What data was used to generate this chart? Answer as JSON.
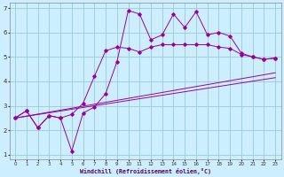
{
  "xlabel": "Windchill (Refroidissement éolien,°C)",
  "background_color": "#cceeff",
  "line_color": "#990099",
  "grid_color": "#99cccc",
  "xlim": [
    -0.5,
    23.5
  ],
  "ylim": [
    0.8,
    7.2
  ],
  "xticks": [
    0,
    1,
    2,
    3,
    4,
    5,
    6,
    7,
    8,
    9,
    10,
    11,
    12,
    13,
    14,
    15,
    16,
    17,
    18,
    19,
    20,
    21,
    22,
    23
  ],
  "yticks": [
    1,
    2,
    3,
    4,
    5,
    6,
    7
  ],
  "series1_x": [
    0,
    1,
    2,
    3,
    4,
    5,
    6,
    7,
    8,
    9,
    10,
    11,
    12,
    13,
    14,
    15,
    16,
    17,
    18,
    19,
    20,
    21,
    22,
    23
  ],
  "series1_y": [
    2.5,
    2.8,
    2.1,
    2.6,
    2.5,
    1.15,
    2.7,
    2.95,
    3.5,
    4.8,
    6.9,
    6.75,
    5.7,
    5.9,
    6.75,
    6.2,
    6.85,
    5.9,
    6.0,
    5.85,
    5.15,
    5.0,
    4.9,
    4.95
  ],
  "series2_x": [
    0,
    1,
    2,
    3,
    4,
    5,
    6,
    7,
    8,
    9,
    10,
    11,
    12,
    13,
    14,
    15,
    16,
    17,
    18,
    19,
    20,
    21,
    22,
    23
  ],
  "series2_y": [
    2.5,
    2.8,
    2.1,
    2.6,
    2.5,
    2.65,
    3.1,
    4.2,
    5.25,
    5.4,
    5.35,
    5.2,
    5.4,
    5.5,
    5.5,
    5.5,
    5.5,
    5.5,
    5.4,
    5.35,
    5.1,
    5.0,
    4.9,
    4.95
  ],
  "series3_x": [
    0,
    23
  ],
  "series3_y": [
    2.5,
    4.35
  ],
  "series4_x": [
    0,
    23
  ],
  "series4_y": [
    2.5,
    4.15
  ]
}
